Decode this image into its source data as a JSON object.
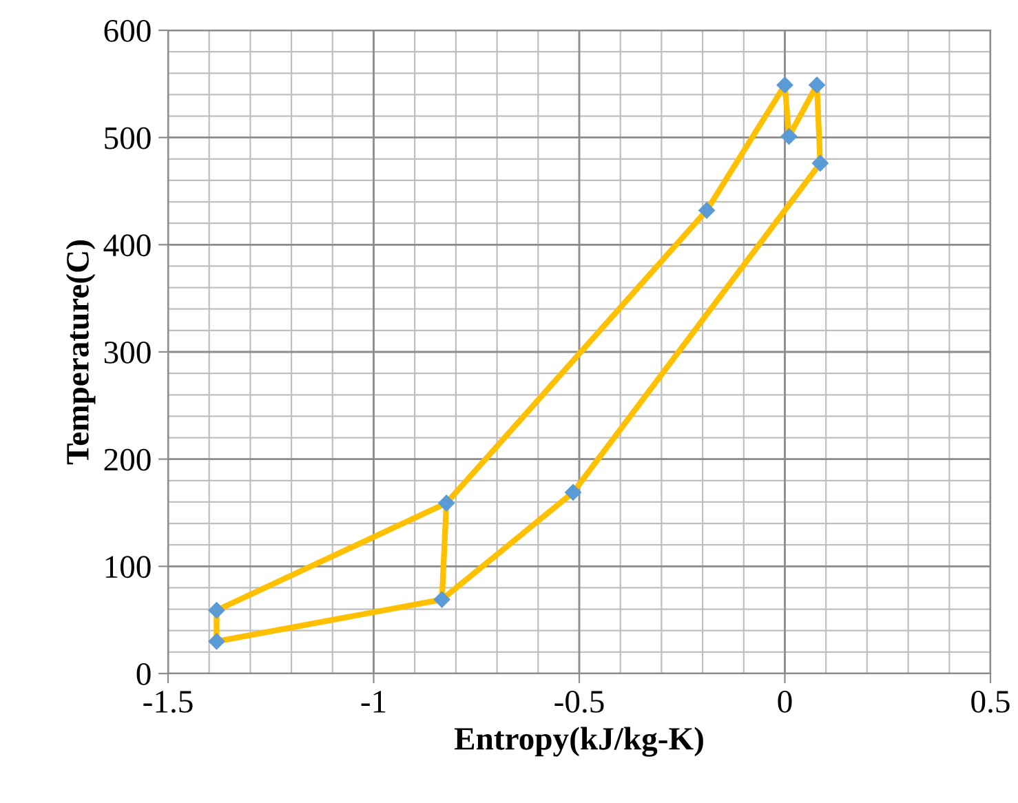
{
  "chart_data": {
    "type": "line",
    "xlabel": "Entropy(kJ/kg-K)",
    "ylabel": "Temperature(C)",
    "series": [
      {
        "color": "#ffc000",
        "x": [
          -0.834,
          -1.382,
          -1.382,
          -0.823,
          -0.19,
          0.0,
          0.01,
          0.078,
          0.086,
          -0.515,
          -0.834,
          -0.823
        ],
        "values": [
          69,
          30,
          59,
          159,
          432,
          549,
          501,
          549,
          476,
          169,
          69,
          159
        ]
      },
      {
        "type": "scatter",
        "color": "#5b9bd5",
        "marker": "diamond",
        "x": [
          -1.382,
          -1.382,
          -0.834,
          -0.823,
          -0.515,
          -0.19,
          0.0,
          0.01,
          0.078,
          0.086
        ],
        "values": [
          30,
          59,
          69,
          159,
          169,
          432,
          549,
          501,
          549,
          476
        ]
      }
    ],
    "xlim": [
      -1.5,
      0.5
    ],
    "xticks": [
      -1.5,
      -1,
      -0.5,
      0,
      0.5
    ],
    "ylim": [
      0,
      600
    ],
    "yticks": [
      0,
      100,
      200,
      300,
      400,
      500,
      600
    ],
    "grid": true,
    "line_style": "solid"
  }
}
